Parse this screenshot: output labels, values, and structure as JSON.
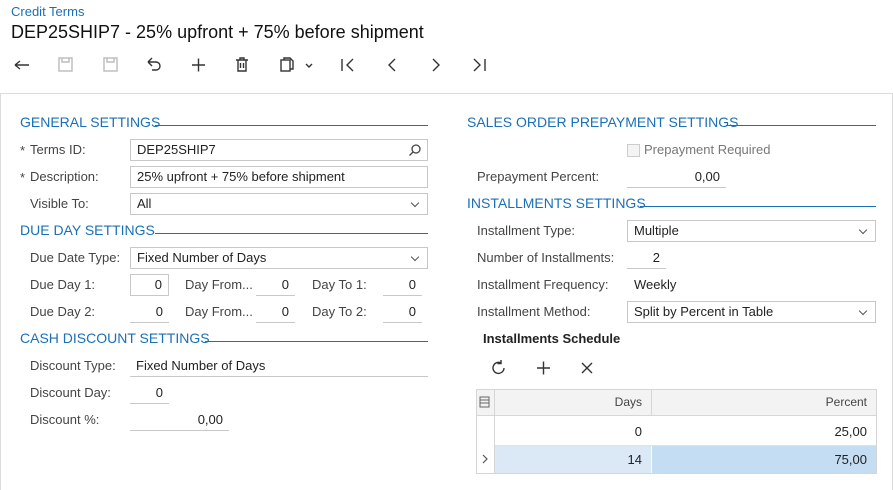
{
  "header": {
    "breadcrumb": "Credit Terms",
    "title": "DEP25SHIP7 - 25% upfront + 75% before shipment"
  },
  "general_settings": {
    "title": "GENERAL SETTINGS",
    "terms_id": {
      "required": "*",
      "label": "Terms ID:",
      "value": "DEP25SHIP7"
    },
    "description": {
      "required": "*",
      "label": "Description:",
      "value": "25% upfront + 75% before shipment"
    },
    "visible_to": {
      "label": "Visible To:",
      "value": "All"
    }
  },
  "due_day_settings": {
    "title": "DUE DAY SETTINGS",
    "due_date_type": {
      "label": "Due Date Type:",
      "value": "Fixed Number of Days"
    },
    "due_day_1": {
      "label": "Due Day 1:",
      "value": "0"
    },
    "day_from_1": {
      "label": "Day From...",
      "value": "0"
    },
    "day_to_1": {
      "label": "Day To 1:",
      "value": "0"
    },
    "due_day_2": {
      "label": "Due Day 2:",
      "value": "0"
    },
    "day_from_2": {
      "label": "Day From...",
      "value": "0"
    },
    "day_to_2": {
      "label": "Day To 2:",
      "value": "0"
    }
  },
  "cash_discount_settings": {
    "title": "CASH DISCOUNT SETTINGS",
    "discount_type": {
      "label": "Discount Type:",
      "value": "Fixed Number of Days"
    },
    "discount_day": {
      "label": "Discount Day:",
      "value": "0"
    },
    "discount_percent": {
      "label": "Discount %:",
      "value": "0,00"
    }
  },
  "prepayment_settings": {
    "title": "SALES ORDER PREPAYMENT SETTINGS",
    "prepayment_required": "Prepayment Required",
    "prepayment_percent": {
      "label": "Prepayment Percent:",
      "value": "0,00"
    }
  },
  "installments_settings": {
    "title": "INSTALLMENTS SETTINGS",
    "installment_type": {
      "label": "Installment Type:",
      "value": "Multiple"
    },
    "number_of_installments": {
      "label": "Number of Installments:",
      "value": "2"
    },
    "installment_frequency": {
      "label": "Installment Frequency:",
      "value": "Weekly"
    },
    "installment_method": {
      "label": "Installment Method:",
      "value": "Split by Percent in Table"
    }
  },
  "installments_schedule": {
    "title": "Installments Schedule",
    "columns": [
      "Days",
      "Percent"
    ],
    "rows": [
      [
        "0",
        "25,00"
      ],
      [
        "14",
        "75,00"
      ]
    ]
  }
}
